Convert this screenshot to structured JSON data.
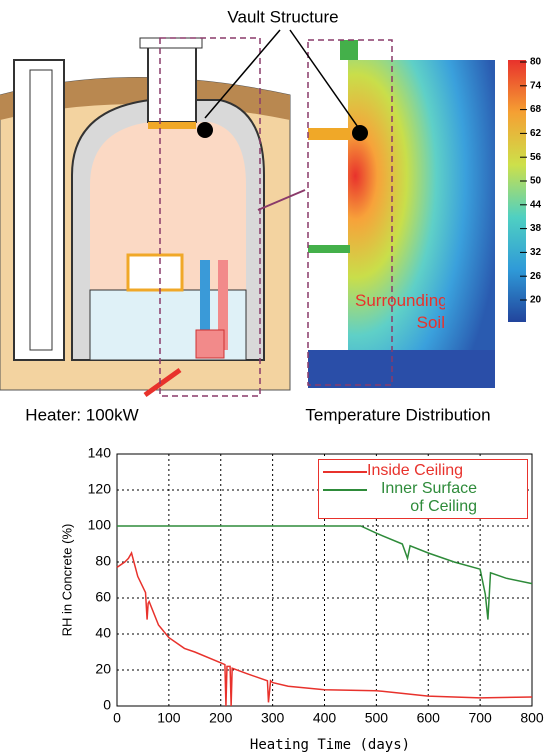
{
  "figure": {
    "label_vault": "Vault Structure",
    "label_heater": "Heater: 100kW",
    "label_temperature": "Temperature Distribution",
    "label_soil": "Surrounding Soil",
    "colorbar": {
      "ticks": [
        80,
        74,
        68,
        62,
        56,
        50,
        44,
        38,
        32,
        26,
        20
      ]
    }
  },
  "chart_data": {
    "type": "line",
    "xlabel": "Heating Time (days)",
    "ylabel": "RH in Concrete (%)",
    "xlim": [
      0,
      800
    ],
    "xticks": [
      0,
      100,
      200,
      300,
      400,
      500,
      600,
      700,
      800
    ],
    "ylim": [
      0,
      140
    ],
    "yticks": [
      0,
      20,
      40,
      60,
      80,
      100,
      120,
      140
    ],
    "grid": true,
    "series": [
      {
        "name": "Inside Ceiling",
        "color": "#e8322c",
        "x": [
          0,
          15,
          22,
          28,
          40,
          55,
          58,
          60,
          62,
          80,
          100,
          130,
          150,
          200,
          208,
          210,
          212,
          218,
          220,
          222,
          250,
          290,
          292,
          296,
          300,
          330,
          400,
          500,
          550,
          600,
          700,
          800
        ],
        "values": [
          77,
          80,
          82,
          85,
          72,
          63,
          48,
          57,
          58,
          45,
          38,
          32,
          30,
          24,
          23,
          0,
          22,
          22,
          0,
          21,
          18,
          14,
          2,
          14,
          13,
          11,
          9,
          8.5,
          7,
          5.5,
          4.5,
          5
        ]
      },
      {
        "name": "Inner Surface of Ceiling",
        "color": "#2e8b3a",
        "x": [
          0,
          100,
          200,
          300,
          400,
          470,
          500,
          550,
          560,
          565,
          600,
          650,
          700,
          710,
          715,
          720,
          750,
          800
        ],
        "values": [
          100,
          100,
          100,
          100,
          100,
          100,
          96,
          90,
          82,
          89,
          85,
          80,
          76,
          62,
          48,
          74,
          71,
          68
        ]
      }
    ]
  }
}
